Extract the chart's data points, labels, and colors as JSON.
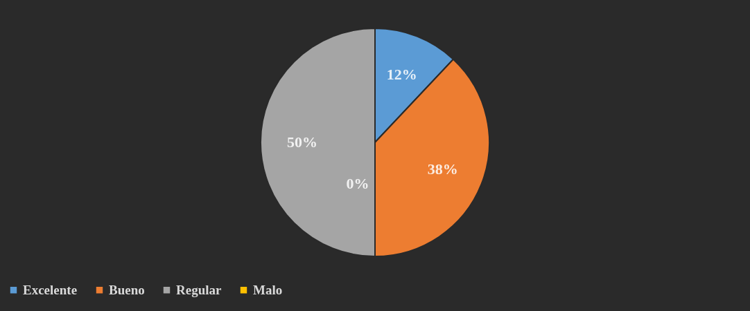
{
  "chart_data": {
    "type": "pie",
    "categories": [
      "Excelente",
      "Bueno",
      "Regular",
      "Malo"
    ],
    "values": [
      12,
      38,
      50,
      0
    ],
    "colors": [
      "#5b9bd5",
      "#ed7d31",
      "#a5a5a5",
      "#ffc000"
    ],
    "value_labels": [
      "12%",
      "38%",
      "50%",
      "0%"
    ],
    "legend": "bottom"
  }
}
